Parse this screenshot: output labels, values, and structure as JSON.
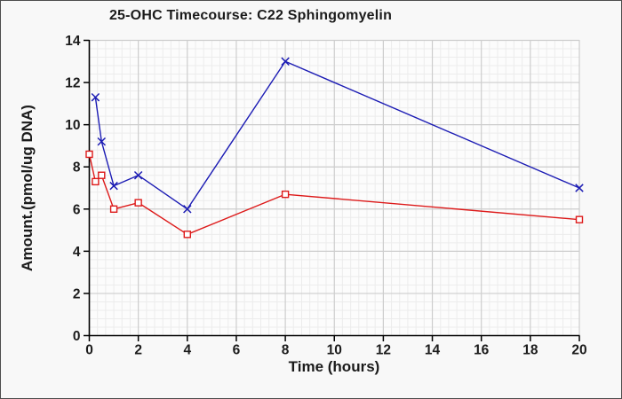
{
  "window": {
    "background": "#f8f8f8",
    "border_color": "#4d4d4d"
  },
  "chart_data": {
    "type": "line",
    "title": "25-OHC Timecourse: C22 Sphingomyelin",
    "xlabel": "Time (hours)",
    "ylabel": "Amount.(pmol/ug DNA)",
    "xlim": [
      0,
      20
    ],
    "ylim": [
      0,
      14
    ],
    "xticks": [
      0,
      2,
      4,
      6,
      8,
      10,
      12,
      14,
      16,
      18,
      20
    ],
    "yticks": [
      0,
      2,
      4,
      6,
      8,
      10,
      12,
      14
    ],
    "legend": "none",
    "grid": {
      "major": true,
      "minor": true,
      "major_color": "#cdcdcd",
      "minor_color": "#ececec",
      "x_minor_step": 0.3333,
      "y_minor_step": 0.4
    },
    "colors": {
      "plot_bg": "#fcfcfc",
      "axis": "#000000",
      "tick_text": "#1b1b1b"
    },
    "series": [
      {
        "name": "blue-series",
        "color": "#1c1cb4",
        "marker": "x",
        "x": [
          0.25,
          0.5,
          1,
          2,
          4,
          8,
          20
        ],
        "y": [
          11.3,
          9.2,
          7.1,
          7.6,
          6.0,
          13.0,
          7.0
        ]
      },
      {
        "name": "red-series",
        "color": "#dd1a1a",
        "marker": "open-square",
        "x": [
          0,
          0.25,
          0.5,
          1,
          2,
          4,
          8,
          20
        ],
        "y": [
          8.6,
          7.3,
          7.6,
          6.0,
          6.3,
          4.8,
          6.7,
          5.5
        ]
      }
    ]
  }
}
